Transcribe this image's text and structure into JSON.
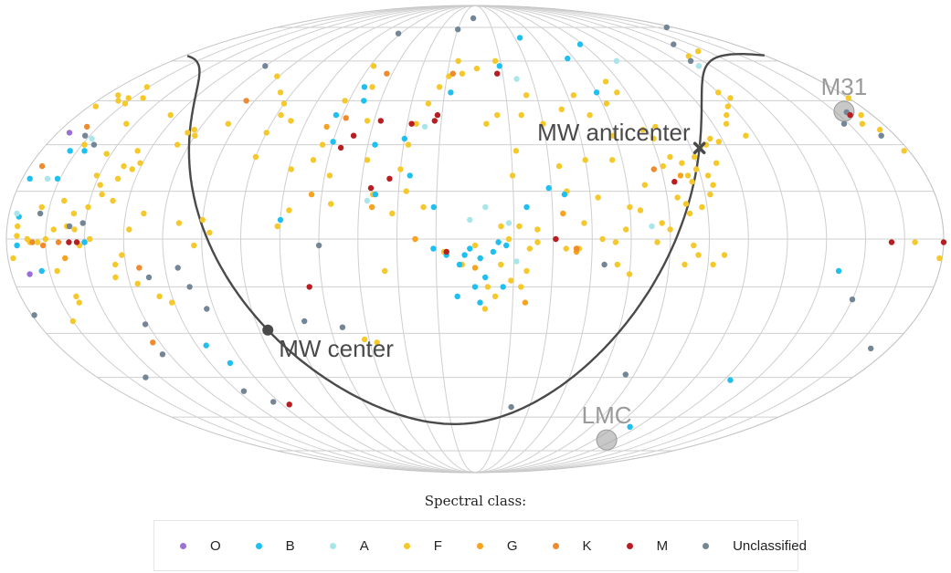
{
  "chart_data": {
    "type": "scatter",
    "projection": "Mollweide all-sky (equatorial coordinates)",
    "grid": true,
    "legend_title": "Spectral class:",
    "legend_placement": "bottom-center",
    "classes": [
      {
        "key": "O",
        "label": "O",
        "color": "#9b6fd6"
      },
      {
        "key": "B",
        "label": "B",
        "color": "#1fbff0"
      },
      {
        "key": "A",
        "label": "A",
        "color": "#a9e6ea"
      },
      {
        "key": "F",
        "label": "F",
        "color": "#f5c82b"
      },
      {
        "key": "G",
        "label": "G",
        "color": "#f7a31f"
      },
      {
        "key": "K",
        "label": "K",
        "color": "#ef8a2e"
      },
      {
        "key": "M",
        "label": "M",
        "color": "#b71e22"
      },
      {
        "key": "U",
        "label": "Unclassified",
        "color": "#748595"
      }
    ],
    "annotations": [
      {
        "label": "M31",
        "lon": 10.7,
        "lat": 41.3,
        "marker": "circle",
        "color": "#9a9a9a"
      },
      {
        "label": "LMC",
        "lon": 80.9,
        "lat": -69.8,
        "marker": "circle",
        "color": "#9a9a9a"
      },
      {
        "label": "MW anticenter",
        "lon": 86.4,
        "lat": 28.9,
        "marker": "cross",
        "color": "#4a4a4a"
      },
      {
        "label": "MW center",
        "lon": 266.4,
        "lat": -28.9,
        "marker": "dot",
        "color": "#4a4a4a"
      }
    ],
    "galactic_plane": "great circle through MW center and MW anticenter",
    "points": [
      [
        "F",
        -15,
        44
      ],
      [
        "F",
        -13,
        46
      ],
      [
        "F",
        -10,
        45
      ],
      [
        "F",
        -6,
        47
      ],
      [
        "F",
        -3,
        43
      ],
      [
        "F",
        0,
        46
      ],
      [
        "F",
        5,
        40
      ],
      [
        "F",
        9,
        37
      ],
      [
        "F",
        4,
        35
      ],
      [
        "F",
        2,
        28
      ],
      [
        "U",
        10,
        41
      ],
      [
        "U",
        17,
        37
      ],
      [
        "U",
        6,
        33
      ],
      [
        "U",
        -13,
        33
      ],
      [
        "O",
        -5,
        34
      ],
      [
        "A",
        -17,
        32
      ],
      [
        "B",
        -12,
        28
      ],
      [
        "U",
        -20,
        30
      ],
      [
        "F",
        -28,
        27
      ],
      [
        "F",
        -38,
        23
      ],
      [
        "F",
        -42,
        22
      ],
      [
        "F",
        -39,
        12
      ],
      [
        "F",
        -52,
        8
      ],
      [
        "F",
        -47,
        3
      ],
      [
        "F",
        -44,
        -5
      ],
      [
        "F",
        -40,
        -12
      ],
      [
        "F",
        -22,
        -18
      ],
      [
        "F",
        -26,
        3
      ],
      [
        "F",
        -32,
        0
      ],
      [
        "F",
        -28,
        -2
      ],
      [
        "K",
        -30,
        -1
      ],
      [
        "M",
        -27,
        -1
      ],
      [
        "U",
        -29,
        5
      ],
      [
        "K",
        -20,
        -1
      ],
      [
        "F",
        -9,
        -1
      ],
      [
        "F",
        -18,
        -10
      ],
      [
        "B",
        -12,
        -10
      ],
      [
        "O",
        -7,
        -11
      ],
      [
        "B",
        -3,
        19
      ],
      [
        "K",
        -10,
        -1
      ],
      [
        "F",
        -2,
        -6
      ],
      [
        "F",
        1,
        -6
      ],
      [
        "F",
        11,
        -1
      ],
      [
        "U",
        -1,
        -24
      ],
      [
        "K",
        -42,
        -33
      ],
      [
        "U",
        42,
        67
      ],
      [
        "U",
        6,
        75
      ],
      [
        "F",
        36,
        64
      ],
      [
        "F",
        48,
        62
      ],
      [
        "F",
        52,
        58
      ],
      [
        "U",
        52,
        60
      ],
      [
        "A",
        52,
        58
      ],
      [
        "F",
        60,
        48
      ],
      [
        "F",
        57,
        46
      ],
      [
        "F",
        62,
        43
      ],
      [
        "F",
        66,
        40
      ],
      [
        "F",
        69,
        37
      ],
      [
        "F",
        64,
        33
      ],
      [
        "F",
        77,
        31
      ],
      [
        "F",
        80,
        32
      ],
      [
        "F",
        83,
        30
      ],
      [
        "F",
        86,
        29
      ],
      [
        "F",
        90,
        26
      ],
      [
        "F",
        96,
        24
      ],
      [
        "F",
        100,
        26
      ],
      [
        "F",
        104,
        23
      ],
      [
        "F",
        95,
        20
      ],
      [
        "F",
        91,
        22
      ],
      [
        "F",
        82,
        24
      ],
      [
        "F",
        87,
        20
      ],
      [
        "F",
        86,
        17
      ],
      [
        "F",
        88,
        14
      ],
      [
        "F",
        92,
        10
      ],
      [
        "F",
        94,
        18
      ],
      [
        "F",
        97,
        8
      ],
      [
        "F",
        101,
        13
      ],
      [
        "F",
        105,
        3
      ],
      [
        "F",
        108,
        5
      ],
      [
        "F",
        96,
        -2
      ],
      [
        "F",
        94,
        -5
      ],
      [
        "F",
        99,
        -8
      ],
      [
        "F",
        110,
        -1
      ],
      [
        "F",
        113,
        17
      ],
      [
        "F",
        120,
        10
      ],
      [
        "F",
        116,
        9
      ],
      [
        "F",
        122,
        3
      ],
      [
        "F",
        124,
        25
      ],
      [
        "F",
        121,
        33
      ],
      [
        "F",
        128,
        40
      ],
      [
        "F",
        132,
        47
      ],
      [
        "F",
        112,
        52
      ],
      [
        "F",
        110,
        48
      ],
      [
        "F",
        118,
        44
      ],
      [
        "F",
        104,
        32
      ],
      [
        "F",
        101,
        36
      ],
      [
        "F",
        107,
        35
      ],
      [
        "F",
        84,
        -5
      ],
      [
        "F",
        88,
        -8
      ],
      [
        "F",
        140,
        -3
      ],
      [
        "F",
        138,
        5
      ],
      [
        "F",
        144,
        15
      ],
      [
        "F",
        146,
        23
      ],
      [
        "F",
        150,
        37
      ],
      [
        "F",
        140,
        42
      ],
      [
        "F",
        135,
        25
      ],
      [
        "F",
        132,
        13
      ],
      [
        "F",
        131,
        0
      ],
      [
        "F",
        156,
        3
      ],
      [
        "F",
        159,
        -3
      ],
      [
        "F",
        160,
        -10
      ],
      [
        "F",
        162,
        -15
      ],
      [
        "F",
        166,
        -13
      ],
      [
        "F",
        170,
        -8
      ],
      [
        "F",
        167,
        0
      ],
      [
        "F",
        165,
        20
      ],
      [
        "F",
        163,
        28
      ],
      [
        "F",
        159,
        40
      ],
      [
        "F",
        155,
        47
      ],
      [
        "F",
        170,
        40
      ],
      [
        "F",
        175,
        37
      ],
      [
        "F",
        168,
        60
      ],
      [
        "F",
        179,
        57
      ],
      [
        "F",
        187,
        55
      ],
      [
        "F",
        190,
        60
      ],
      [
        "F",
        194,
        54
      ],
      [
        "F",
        198,
        50
      ],
      [
        "F",
        202,
        44
      ],
      [
        "F",
        206,
        37
      ],
      [
        "F",
        208,
        30
      ],
      [
        "F",
        210,
        22
      ],
      [
        "F",
        207,
        15
      ],
      [
        "F",
        200,
        10
      ],
      [
        "F",
        212,
        8
      ],
      [
        "F",
        220,
        14
      ],
      [
        "F",
        224,
        25
      ],
      [
        "F",
        228,
        38
      ],
      [
        "F",
        232,
        50
      ],
      [
        "F",
        238,
        58
      ],
      [
        "F",
        242,
        45
      ],
      [
        "F",
        244,
        30
      ],
      [
        "F",
        238,
        20
      ],
      [
        "F",
        236,
        11
      ],
      [
        "F",
        252,
        9
      ],
      [
        "F",
        256,
        4
      ],
      [
        "F",
        268,
        40
      ],
      [
        "F",
        276,
        48
      ],
      [
        "F",
        289,
        37
      ],
      [
        "F",
        300,
        33
      ],
      [
        "F",
        302,
        35
      ],
      [
        "F",
        305,
        30
      ],
      [
        "F",
        316,
        24
      ],
      [
        "F",
        322,
        19
      ],
      [
        "F",
        328,
        17
      ],
      [
        "F",
        331,
        20
      ],
      [
        "F",
        326,
        14
      ],
      [
        "F",
        330,
        10
      ],
      [
        "F",
        335,
        8
      ],
      [
        "F",
        340,
        12
      ],
      [
        "F",
        337,
        4
      ],
      [
        "F",
        342,
        3
      ],
      [
        "F",
        345,
        0
      ],
      [
        "F",
        348,
        -1
      ],
      [
        "F",
        352,
        0
      ],
      [
        "F",
        356,
        1
      ],
      [
        "F",
        348,
        10
      ],
      [
        "F",
        356,
        4
      ],
      [
        "F",
        319,
        -8
      ],
      [
        "F",
        312,
        -14
      ],
      [
        "F",
        305,
        -18
      ],
      [
        "F",
        301,
        -20
      ],
      [
        "F",
        282,
        2
      ],
      [
        "F",
        285,
        6
      ],
      [
        "F",
        288,
        -2
      ],
      [
        "F",
        294,
        5
      ],
      [
        "F",
        304,
        34
      ],
      [
        "F",
        318,
        40
      ],
      [
        "F",
        334,
        37
      ],
      [
        "F",
        340,
        46
      ],
      [
        "F",
        346,
        50
      ],
      [
        "F",
        344,
        30
      ],
      [
        "F",
        320,
        28
      ],
      [
        "F",
        286,
        54
      ],
      [
        "F",
        270,
        26
      ],
      [
        "F",
        227,
        -32
      ],
      [
        "F",
        215,
        -10
      ],
      [
        "F",
        175,
        -15
      ],
      [
        "F",
        172,
        -18
      ],
      [
        "F",
        176,
        -22
      ],
      [
        "F",
        120,
        -11
      ],
      [
        "F",
        125,
        -8
      ],
      [
        "F",
        98,
        11
      ],
      [
        "F",
        126,
        -1
      ],
      [
        "F",
        163,
        4
      ],
      [
        "F",
        178,
        -6
      ],
      [
        "F",
        185,
        -8
      ],
      [
        "F",
        192,
        -4
      ],
      [
        "F",
        222,
        -33
      ],
      [
        "F",
        145,
        -3
      ],
      [
        "F",
        156,
        -1
      ],
      [
        "F",
        141,
        -3
      ],
      [
        "F",
        170,
        4
      ],
      [
        "F",
        180,
        -2
      ],
      [
        "F",
        270,
        44
      ],
      [
        "F",
        262,
        38
      ],
      [
        "F",
        270,
        34
      ],
      [
        "F",
        246,
        25
      ],
      [
        "F",
        254,
        22
      ],
      [
        "F",
        338,
        -20
      ],
      [
        "F",
        345,
        -26
      ],
      [
        "B",
        107,
        67
      ],
      [
        "B",
        124,
        61
      ],
      [
        "B",
        146,
        70
      ],
      [
        "B",
        166,
        58
      ],
      [
        "B",
        192,
        48
      ],
      [
        "B",
        236,
        50
      ],
      [
        "B",
        233,
        45
      ],
      [
        "B",
        243,
        40
      ],
      [
        "B",
        210,
        32
      ],
      [
        "B",
        222,
        30
      ],
      [
        "B",
        240,
        31
      ],
      [
        "B",
        120,
        48
      ],
      [
        "B",
        151,
        16
      ],
      [
        "B",
        145,
        14
      ],
      [
        "B",
        160,
        10
      ],
      [
        "B",
        196,
        10
      ],
      [
        "B",
        206,
        20
      ],
      [
        "B",
        219,
        14
      ],
      [
        "B",
        255,
        6
      ],
      [
        "B",
        171,
        -1
      ],
      [
        "B",
        182,
        -3
      ],
      [
        "B",
        184,
        -5
      ],
      [
        "B",
        186,
        -8
      ],
      [
        "B",
        176,
        -12
      ],
      [
        "B",
        169,
        -15
      ],
      [
        "B",
        180,
        -15
      ],
      [
        "B",
        187,
        -18
      ],
      [
        "B",
        178,
        -20
      ],
      [
        "B",
        196,
        -3
      ],
      [
        "B",
        173,
        -4
      ],
      [
        "B",
        168,
        -2
      ],
      [
        "B",
        178,
        -6
      ],
      [
        "B",
        191,
        -5
      ],
      [
        "B",
        342,
        28
      ],
      [
        "B",
        346,
        19
      ],
      [
        "B",
        356,
        7
      ],
      [
        "B",
        356,
        -2
      ],
      [
        "B",
        330,
        -1
      ],
      [
        "B",
        291,
        -40
      ],
      [
        "B",
        296,
        -34
      ],
      [
        "B",
        39,
        -10
      ],
      [
        "B",
        57,
        -46
      ],
      [
        "B",
        80,
        -64
      ],
      [
        "A",
        96,
        60
      ],
      [
        "A",
        158,
        53
      ],
      [
        "A",
        202,
        36
      ],
      [
        "A",
        222,
        12
      ],
      [
        "A",
        182,
        6
      ],
      [
        "A",
        167,
        5
      ],
      [
        "A",
        164,
        -7
      ],
      [
        "A",
        112,
        4
      ],
      [
        "A",
        176,
        10
      ],
      [
        "A",
        350,
        19
      ],
      [
        "A",
        357,
        8
      ],
      [
        "G",
        98,
        20
      ],
      [
        "G",
        160,
        -20
      ],
      [
        "G",
        203,
        0
      ],
      [
        "G",
        220,
        10
      ],
      [
        "G",
        244,
        14
      ],
      [
        "G",
        245,
        36
      ],
      [
        "G",
        146,
        8
      ],
      [
        "G",
        180,
        -9
      ],
      [
        "G",
        141,
        -4
      ],
      [
        "G",
        338,
        -6
      ],
      [
        "K",
        108,
        22
      ],
      [
        "K",
        192,
        55
      ],
      [
        "K",
        228,
        55
      ],
      [
        "K",
        238,
        39
      ],
      [
        "K",
        289,
        45
      ],
      [
        "K",
        350,
        36
      ],
      [
        "K",
        355,
        23
      ],
      [
        "K",
        346,
        -2
      ],
      [
        "K",
        310,
        -9
      ],
      [
        "K",
        141,
        -3
      ],
      [
        "M",
        10,
        40
      ],
      [
        "M",
        101,
        18
      ],
      [
        "M",
        168,
        55
      ],
      [
        "M",
        197,
        40
      ],
      [
        "M",
        198,
        38
      ],
      [
        "M",
        208,
        37
      ],
      [
        "M",
        222,
        38
      ],
      [
        "M",
        232,
        33
      ],
      [
        "M",
        236,
        29
      ],
      [
        "M",
        214,
        19
      ],
      [
        "M",
        221,
        16
      ],
      [
        "M",
        191,
        -4
      ],
      [
        "M",
        281,
        -55
      ],
      [
        "M",
        245,
        -15
      ],
      [
        "M",
        360,
        -1
      ],
      [
        "M",
        149,
        0
      ],
      [
        "M",
        20,
        -1
      ],
      [
        "M",
        -24,
        -1
      ],
      [
        "U",
        182,
        80
      ],
      [
        "U",
        195,
        74
      ],
      [
        "U",
        242,
        72
      ],
      [
        "U",
        300,
        58
      ],
      [
        "U",
        337,
        -45
      ],
      [
        "U",
        318,
        -37
      ],
      [
        "U",
        288,
        -54
      ],
      [
        "U",
        297,
        -50
      ],
      [
        "U",
        235,
        -28
      ],
      [
        "U",
        250,
        -26
      ],
      [
        "U",
        288,
        -22
      ],
      [
        "U",
        292,
        -15
      ],
      [
        "U",
        295,
        -9
      ],
      [
        "U",
        336,
        4
      ],
      [
        "U",
        348,
        8
      ],
      [
        "U",
        316,
        -27
      ],
      [
        "U",
        307,
        -12
      ],
      [
        "U",
        240,
        -2
      ],
      [
        "U",
        109,
        -44
      ],
      [
        "U",
        160,
        -56
      ],
      [
        "U",
        130,
        -8
      ],
      [
        "U",
        8,
        -35
      ],
      [
        "U",
        30,
        -19
      ]
    ]
  }
}
